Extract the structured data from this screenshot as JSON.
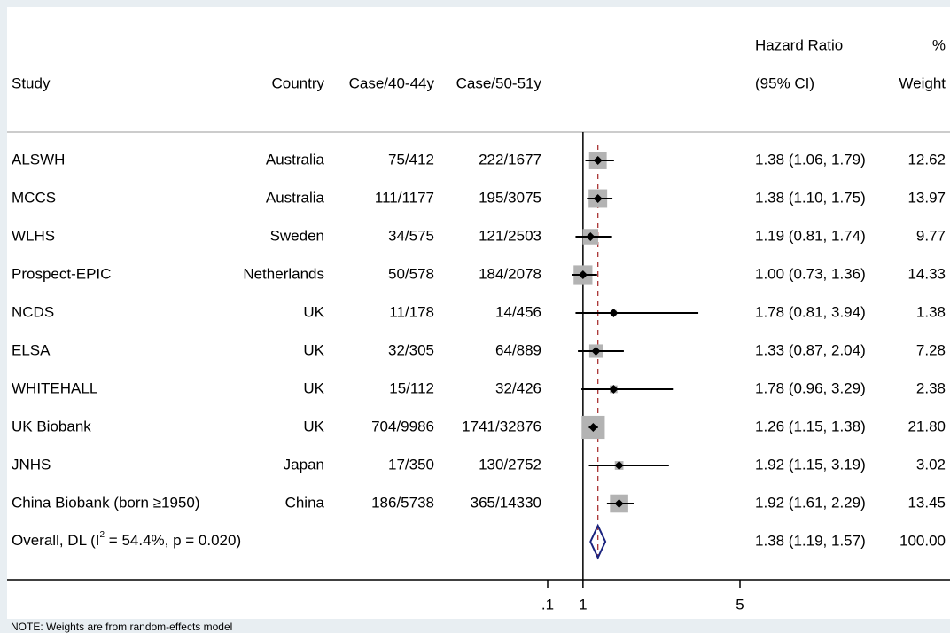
{
  "chart_data": {
    "type": "forest",
    "headers": {
      "study": "Study",
      "country": "Country",
      "case40": "Case/40-44y",
      "case50": "Case/50-51y",
      "hr_top": "Hazard Ratio",
      "hr_bottom": "(95% CI)",
      "weight_top": "%",
      "weight_bottom": "Weight"
    },
    "studies": [
      {
        "name": "ALSWH",
        "country": "Australia",
        "case40": "75/412",
        "case50": "222/1677",
        "hr": 1.38,
        "lo": 1.06,
        "hi": 1.79,
        "ci_label": "1.38 (1.06, 1.79)",
        "weight": 12.62,
        "weight_label": "12.62"
      },
      {
        "name": "MCCS",
        "country": "Australia",
        "case40": "111/1177",
        "case50": "195/3075",
        "hr": 1.38,
        "lo": 1.1,
        "hi": 1.75,
        "ci_label": "1.38 (1.10, 1.75)",
        "weight": 13.97,
        "weight_label": "13.97"
      },
      {
        "name": "WLHS",
        "country": "Sweden",
        "case40": "34/575",
        "case50": "121/2503",
        "hr": 1.19,
        "lo": 0.81,
        "hi": 1.74,
        "ci_label": "1.19 (0.81, 1.74)",
        "weight": 9.77,
        "weight_label": "9.77"
      },
      {
        "name": "Prospect-EPIC",
        "country": "Netherlands",
        "case40": "50/578",
        "case50": "184/2078",
        "hr": 1.0,
        "lo": 0.73,
        "hi": 1.36,
        "ci_label": "1.00 (0.73, 1.36)",
        "weight": 14.33,
        "weight_label": "14.33"
      },
      {
        "name": "NCDS",
        "country": "UK",
        "case40": "11/178",
        "case50": "14/456",
        "hr": 1.78,
        "lo": 0.81,
        "hi": 3.94,
        "ci_label": "1.78 (0.81, 3.94)",
        "weight": 1.38,
        "weight_label": "1.38"
      },
      {
        "name": "ELSA",
        "country": "UK",
        "case40": "32/305",
        "case50": "64/889",
        "hr": 1.33,
        "lo": 0.87,
        "hi": 2.04,
        "ci_label": "1.33 (0.87, 2.04)",
        "weight": 7.28,
        "weight_label": "7.28"
      },
      {
        "name": "WHITEHALL",
        "country": "UK",
        "case40": "15/112",
        "case50": "32/426",
        "hr": 1.78,
        "lo": 0.96,
        "hi": 3.29,
        "ci_label": "1.78 (0.96, 3.29)",
        "weight": 2.38,
        "weight_label": "2.38"
      },
      {
        "name": "UK Biobank",
        "country": "UK",
        "case40": "704/9986",
        "case50": "1741/32876",
        "hr": 1.26,
        "lo": 1.15,
        "hi": 1.38,
        "ci_label": "1.26 (1.15, 1.38)",
        "weight": 21.8,
        "weight_label": "21.80"
      },
      {
        "name": "JNHS",
        "country": "Japan",
        "case40": "17/350",
        "case50": "130/2752",
        "hr": 1.92,
        "lo": 1.15,
        "hi": 3.19,
        "ci_label": "1.92 (1.15, 3.19)",
        "weight": 3.02,
        "weight_label": "3.02"
      },
      {
        "name": "China Biobank (born ≥1950)",
        "country": "China",
        "case40": "186/5738",
        "case50": "365/14330",
        "hr": 1.92,
        "lo": 1.61,
        "hi": 2.29,
        "ci_label": "1.92 (1.61, 2.29)",
        "weight": 13.45,
        "weight_label": "13.45"
      }
    ],
    "overall": {
      "label_pre": "Overall, DL (I",
      "label_sup": "2",
      "label_post": " = 54.4%, p = 0.020)",
      "hr": 1.38,
      "lo": 1.19,
      "hi": 1.57,
      "ci_label": "1.38 (1.19, 1.57)",
      "weight": 100,
      "weight_label": "100.00"
    },
    "xlim": [
      0.1,
      5
    ],
    "xticks": [
      {
        "value": 0.1,
        "label": ".1"
      },
      1,
      5
    ],
    "null_value": 1,
    "note": "NOTE: Weights are from random-effects model"
  }
}
